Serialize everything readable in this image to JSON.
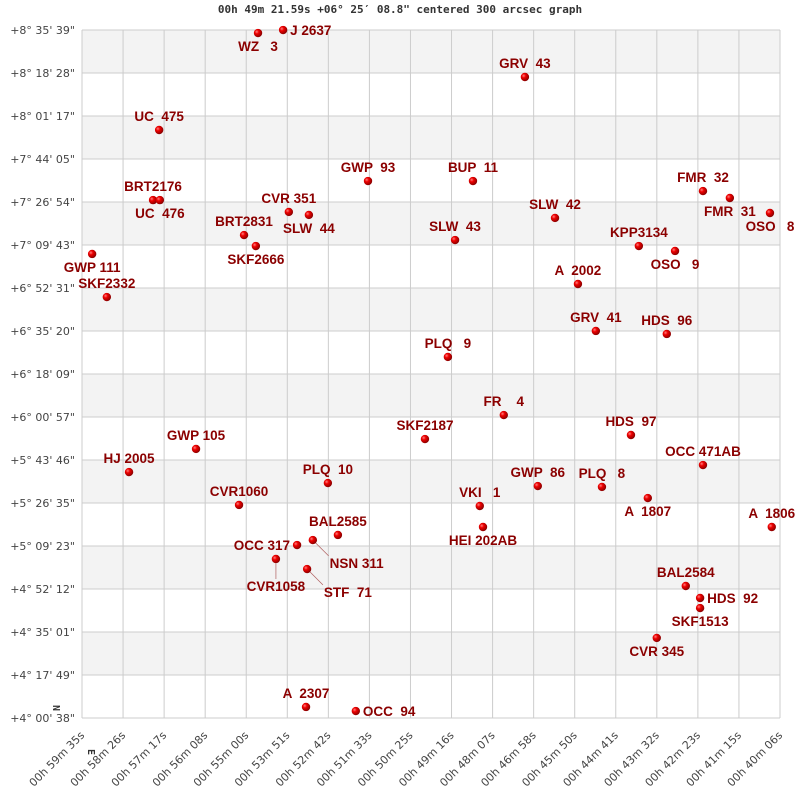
{
  "chart_data": {
    "type": "scatter",
    "title": "00h 49m 21.59s +06° 25′ 08.8\" centered 300 arcsec graph",
    "xlabel": "",
    "ylabel": "",
    "x_units": "right ascension minutes (00h)",
    "y_units": "declination degrees",
    "xlim": [
      59.583,
      40.1
    ],
    "ylim": [
      4.0106,
      8.5942
    ],
    "x_reversed": true,
    "grid": true,
    "banded_background": true,
    "compass": {
      "north": "N",
      "east": "E"
    },
    "colors": {
      "marker": "#dd0000",
      "label": "#8b0000",
      "grid": "#cccccc",
      "band": "#f3f3f3"
    },
    "x_tick_labels": [
      "00h 59m 35s",
      "00h 58m 26s",
      "00h 57m 17s",
      "00h 56m 08s",
      "00h 55m 00s",
      "00h 53m 51s",
      "00h 52m 42s",
      "00h 51m 33s",
      "00h 50m 25s",
      "00h 49m 16s",
      "00h 48m 07s",
      "00h 46m 58s",
      "00h 45m 50s",
      "00h 44m 41s",
      "00h 43m 32s",
      "00h 42m 23s",
      "00h 41m 15s",
      "00h 40m 06s"
    ],
    "y_tick_labels": [
      "+8° 35' 39\"",
      "+8° 18' 28\"",
      "+8° 01' 17\"",
      "+7° 44' 05\"",
      "+7° 26' 54\"",
      "+7° 09' 43\"",
      "+6° 52' 31\"",
      "+6° 35' 20\"",
      "+6° 18' 09\"",
      "+6° 00' 57\"",
      "+5° 43' 46\"",
      "+5° 26' 35\"",
      "+5° 09' 23\"",
      "+4° 52' 12\"",
      "+4° 35' 01\"",
      "+4° 17' 49\"",
      "+4° 00' 38\""
    ],
    "points": [
      {
        "label": "WZ   3",
        "ra": 54.67,
        "dec": 8.574
      },
      {
        "label": "J 2637",
        "ra": 53.97,
        "dec": 8.594
      },
      {
        "label": "GRV  43",
        "ra": 47.22,
        "dec": 8.281
      },
      {
        "label": "UC  475",
        "ra": 57.43,
        "dec": 7.928
      },
      {
        "label": "GWP  93",
        "ra": 51.6,
        "dec": 7.588
      },
      {
        "label": "BUP  11",
        "ra": 48.67,
        "dec": 7.588
      },
      {
        "label": "BRT2176",
        "ra": 57.6,
        "dec": 7.461
      },
      {
        "label": "UC  476",
        "ra": 57.41,
        "dec": 7.461
      },
      {
        "label": "CVR 351",
        "ra": 53.81,
        "dec": 7.382
      },
      {
        "label": "SLW  44",
        "ra": 53.25,
        "dec": 7.362
      },
      {
        "label": "SLW  42",
        "ra": 46.38,
        "dec": 7.342
      },
      {
        "label": "FMR  32",
        "ra": 42.25,
        "dec": 7.521
      },
      {
        "label": "FMR  31",
        "ra": 41.5,
        "dec": 7.475
      },
      {
        "label": "OSO   8",
        "ra": 40.38,
        "dec": 7.375
      },
      {
        "label": "BRT2831",
        "ra": 55.06,
        "dec": 7.228
      },
      {
        "label": "SKF2666",
        "ra": 54.73,
        "dec": 7.155
      },
      {
        "label": "SLW  43",
        "ra": 49.17,
        "dec": 7.195
      },
      {
        "label": "KPP3134",
        "ra": 44.04,
        "dec": 7.155
      },
      {
        "label": "OSO   9",
        "ra": 43.03,
        "dec": 7.122
      },
      {
        "label": "GWP 111",
        "ra": 59.3,
        "dec": 7.102
      },
      {
        "label": "A  2002",
        "ra": 45.74,
        "dec": 6.902
      },
      {
        "label": "SKF2332",
        "ra": 58.89,
        "dec": 6.815
      },
      {
        "label": "GRV  41",
        "ra": 45.24,
        "dec": 6.589
      },
      {
        "label": "HDS  96",
        "ra": 43.26,
        "dec": 6.569
      },
      {
        "label": "PLQ   9",
        "ra": 49.37,
        "dec": 6.416
      },
      {
        "label": "FR    4",
        "ra": 47.81,
        "dec": 6.029
      },
      {
        "label": "HDS  97",
        "ra": 44.26,
        "dec": 5.896
      },
      {
        "label": "SKF2187",
        "ra": 50.01,
        "dec": 5.869
      },
      {
        "label": "GWP 105",
        "ra": 56.4,
        "dec": 5.803
      },
      {
        "label": "OCC 471AB",
        "ra": 42.25,
        "dec": 5.696
      },
      {
        "label": "HJ 2005",
        "ra": 58.27,
        "dec": 5.649
      },
      {
        "label": "PLQ  10",
        "ra": 52.72,
        "dec": 5.576
      },
      {
        "label": "GWP  86",
        "ra": 46.86,
        "dec": 5.556
      },
      {
        "label": "PLQ   8",
        "ra": 45.07,
        "dec": 5.55
      },
      {
        "label": "A  1807",
        "ra": 43.79,
        "dec": 5.476
      },
      {
        "label": "CVR1060",
        "ra": 55.2,
        "dec": 5.43
      },
      {
        "label": "VKI   1",
        "ra": 48.48,
        "dec": 5.423
      },
      {
        "label": "HEI 202AB",
        "ra": 48.39,
        "dec": 5.283
      },
      {
        "label": "A  1806",
        "ra": 40.33,
        "dec": 5.283
      },
      {
        "label": "BAL2585",
        "ra": 52.44,
        "dec": 5.23
      },
      {
        "label": "NSN 311",
        "ra": 53.14,
        "dec": 5.196
      },
      {
        "label": "OCC 317",
        "ra": 53.58,
        "dec": 5.163
      },
      {
        "label": "CVR1058",
        "ra": 54.17,
        "dec": 5.07
      },
      {
        "label": "STF  71",
        "ra": 53.3,
        "dec": 5.003
      },
      {
        "label": "BAL2584",
        "ra": 42.73,
        "dec": 4.89
      },
      {
        "label": "HDS  92",
        "ra": 42.33,
        "dec": 4.81
      },
      {
        "label": "SKF1513",
        "ra": 42.33,
        "dec": 4.743
      },
      {
        "label": "CVR 345",
        "ra": 43.54,
        "dec": 4.544
      },
      {
        "label": "A  2307",
        "ra": 53.33,
        "dec": 4.084
      },
      {
        "label": "OCC  94",
        "ra": 51.94,
        "dec": 4.057
      }
    ]
  }
}
